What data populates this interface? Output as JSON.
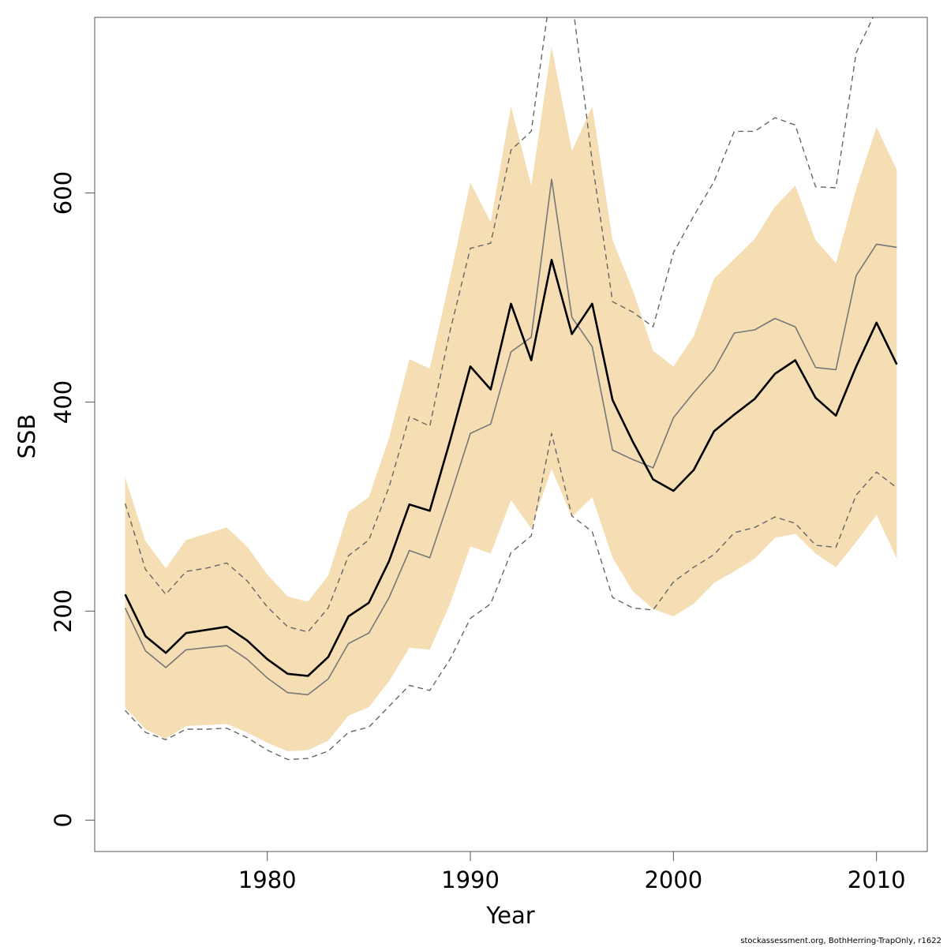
{
  "chart_data": {
    "type": "line",
    "xlabel": "Year",
    "ylabel": "SSB",
    "xlim": [
      1971.5,
      2012.5
    ],
    "ylim": [
      -30,
      768
    ],
    "x_ticks": [
      1980,
      1990,
      2000,
      2010
    ],
    "y_ticks": [
      0,
      200,
      400,
      600
    ],
    "x_tick_labels": [
      "1980",
      "1990",
      "2000",
      "2010"
    ],
    "y_tick_labels": [
      "0",
      "200",
      "400",
      "600"
    ],
    "grid": false,
    "x": [
      1973,
      1974,
      1975,
      1976,
      1977,
      1978,
      1979,
      1980,
      1981,
      1982,
      1983,
      1984,
      1985,
      1986,
      1987,
      1988,
      1989,
      1990,
      1991,
      1992,
      1993,
      1994,
      1995,
      1996,
      1997,
      1998,
      1999,
      2000,
      2001,
      2002,
      2003,
      2004,
      2005,
      2006,
      2007,
      2008,
      2009,
      2010,
      2011
    ],
    "colors": {
      "band": "#f5deb3",
      "estimate": "#000000",
      "alternative": "#777777",
      "alternative_bounds": "#666666"
    },
    "series": [
      {
        "role": "estimate",
        "style": "solid-bold",
        "values": [
          216,
          176,
          160,
          179,
          182,
          185,
          172,
          154,
          140,
          138,
          156,
          195,
          208,
          248,
          302,
          296,
          363,
          434,
          412,
          494,
          440,
          536,
          465,
          494,
          402,
          362,
          326,
          315,
          335,
          372,
          388,
          403,
          427,
          440,
          404,
          387,
          434,
          476,
          436
        ]
      },
      {
        "role": "band_upper",
        "style": "fill",
        "values": [
          328,
          267,
          241,
          268,
          274,
          280,
          262,
          235,
          214,
          209,
          234,
          295,
          309,
          366,
          441,
          432,
          519,
          610,
          572,
          683,
          607,
          740,
          640,
          683,
          555,
          507,
          449,
          434,
          463,
          518,
          537,
          556,
          587,
          607,
          555,
          533,
          604,
          663,
          622
        ]
      },
      {
        "role": "band_lower",
        "style": "fill",
        "values": [
          108,
          87,
          78,
          90,
          91,
          92,
          84,
          74,
          66,
          67,
          76,
          100,
          108,
          133,
          165,
          163,
          207,
          262,
          255,
          306,
          279,
          336,
          290,
          309,
          251,
          219,
          202,
          195,
          207,
          227,
          238,
          250,
          270,
          274,
          255,
          242,
          266,
          292,
          250
        ]
      },
      {
        "role": "alternative",
        "style": "solid-thin",
        "values": [
          203,
          162,
          146,
          163,
          165,
          167,
          154,
          136,
          122,
          120,
          135,
          169,
          179,
          213,
          258,
          251,
          309,
          370,
          379,
          448,
          462,
          613,
          481,
          453,
          354,
          345,
          337,
          385,
          409,
          431,
          466,
          469,
          480,
          472,
          433,
          431,
          521,
          551,
          548
        ]
      },
      {
        "role": "alternative_upper",
        "style": "dashed",
        "values": [
          303,
          240,
          216,
          238,
          241,
          246,
          229,
          204,
          185,
          180,
          203,
          253,
          268,
          319,
          386,
          377,
          468,
          547,
          552,
          641,
          659,
          800,
          787,
          630,
          496,
          486,
          472,
          543,
          578,
          611,
          659,
          659,
          672,
          665,
          606,
          605,
          734,
          775,
          790
        ]
      },
      {
        "role": "alternative_lower",
        "style": "dashed",
        "values": [
          105,
          84,
          77,
          87,
          87,
          88,
          79,
          67,
          58,
          59,
          66,
          84,
          89,
          109,
          129,
          124,
          154,
          193,
          207,
          256,
          272,
          370,
          291,
          276,
          213,
          203,
          201,
          228,
          242,
          254,
          275,
          280,
          290,
          284,
          263,
          261,
          311,
          333,
          318
        ]
      }
    ]
  },
  "footer": {
    "text": "stockassessment.org, BothHerring-TrapOnly, r1622"
  }
}
